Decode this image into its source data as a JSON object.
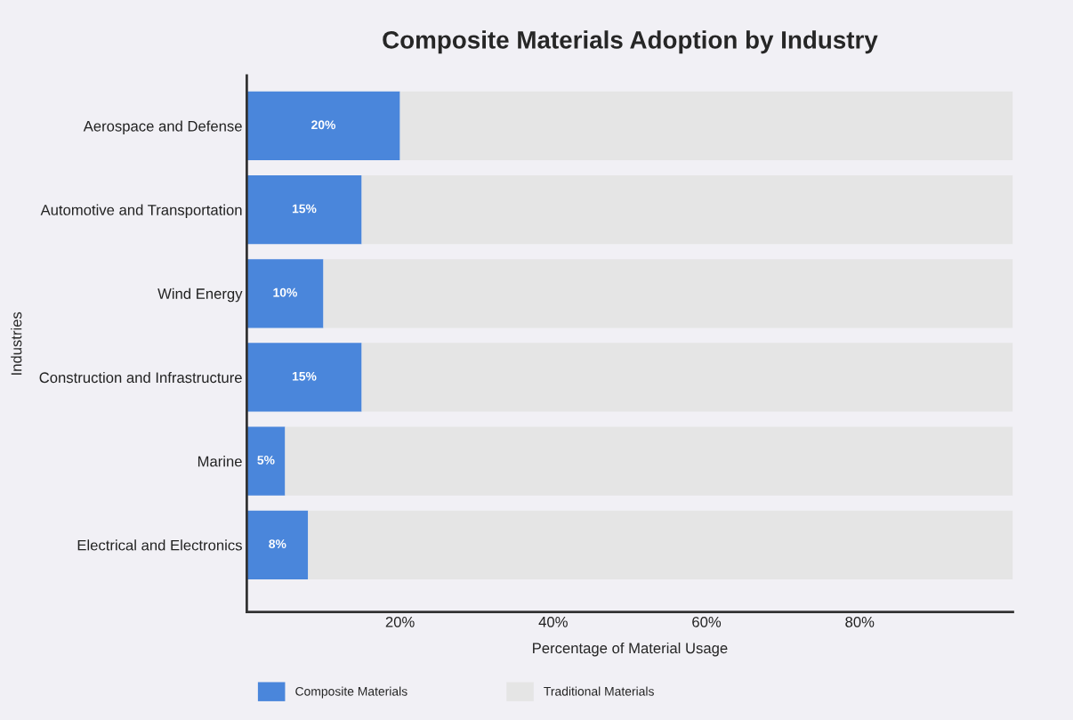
{
  "chart_data": {
    "type": "bar",
    "orientation": "horizontal",
    "stacked": true,
    "title": "Composite Materials Adoption by Industry",
    "xlabel": "Percentage of Material Usage",
    "ylabel": "Industries",
    "categories": [
      "Aerospace and Defense",
      "Automotive and Transportation",
      "Wind Energy",
      "Construction and Infrastructure",
      "Marine",
      "Electrical and Electronics"
    ],
    "series": [
      {
        "name": "Composite Materials",
        "color": "#4a86db",
        "values": [
          20,
          15,
          10,
          15,
          5,
          8
        ],
        "value_labels": [
          "20%",
          "15%",
          "10%",
          "15%",
          "5%",
          "8%"
        ]
      },
      {
        "name": "Traditional Materials",
        "color": "#e5e5e5",
        "values": [
          80,
          85,
          90,
          85,
          95,
          92
        ]
      }
    ],
    "xlim": [
      0,
      100
    ],
    "xticks": [
      {
        "value": 20,
        "label": "20%"
      },
      {
        "value": 40,
        "label": "40%"
      },
      {
        "value": 60,
        "label": "60%"
      },
      {
        "value": 80,
        "label": "80%"
      }
    ],
    "grid": false,
    "legend": "bottom"
  }
}
